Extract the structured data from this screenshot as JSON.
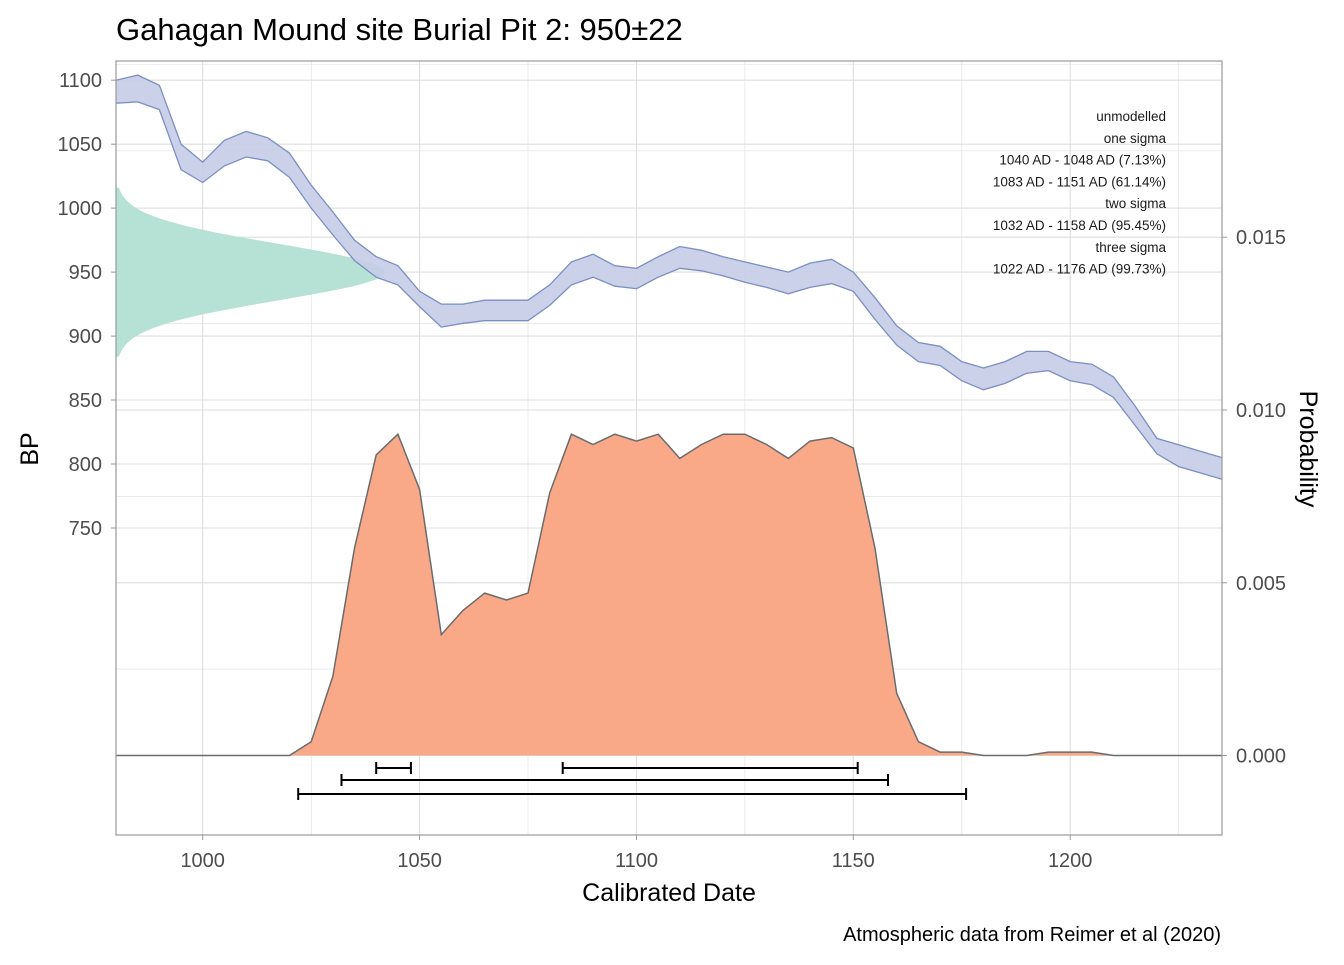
{
  "chart_data": {
    "type": "area",
    "title": "Gahagan Mound site Burial Pit 2: 950±22",
    "xlabel": "Calibrated Date",
    "ylabel": "BP",
    "y2label": "Probability",
    "caption": "Atmospheric data from Reimer et al (2020)",
    "xlim": [
      980,
      1235
    ],
    "ylim": [
      510,
      1115
    ],
    "y2lim": [
      -0.0023,
      0.0201
    ],
    "x_ticks": [
      1000,
      1050,
      1100,
      1150,
      1200
    ],
    "y_ticks": [
      750,
      800,
      850,
      900,
      950,
      1000,
      1050,
      1100
    ],
    "y2_ticks": [
      0.0,
      0.005,
      0.01,
      0.015
    ],
    "y2_tick_labels": [
      "0.000",
      "0.005",
      "0.010",
      "0.015"
    ],
    "grid": true,
    "calibration_curve": {
      "x": [
        980,
        985,
        990,
        995,
        1000,
        1005,
        1010,
        1015,
        1020,
        1025,
        1030,
        1035,
        1040,
        1045,
        1050,
        1055,
        1060,
        1065,
        1070,
        1075,
        1080,
        1085,
        1090,
        1095,
        1100,
        1105,
        1110,
        1115,
        1120,
        1125,
        1130,
        1135,
        1140,
        1145,
        1150,
        1155,
        1160,
        1165,
        1170,
        1175,
        1180,
        1185,
        1190,
        1195,
        1200,
        1205,
        1210,
        1215,
        1220,
        1225,
        1230,
        1235
      ],
      "upper": [
        1100,
        1104,
        1096,
        1050,
        1036,
        1053,
        1060,
        1055,
        1043,
        1018,
        997,
        975,
        962,
        955,
        935,
        925,
        925,
        928,
        928,
        928,
        940,
        958,
        964,
        955,
        953,
        962,
        970,
        967,
        962,
        958,
        954,
        950,
        957,
        960,
        950,
        930,
        908,
        895,
        892,
        880,
        875,
        880,
        888,
        888,
        880,
        878,
        868,
        845,
        820,
        815,
        810,
        805
      ],
      "lower": [
        1082,
        1083,
        1077,
        1030,
        1020,
        1033,
        1040,
        1037,
        1024,
        1000,
        979,
        959,
        946,
        940,
        923,
        907,
        910,
        912,
        912,
        912,
        924,
        940,
        946,
        939,
        937,
        946,
        953,
        951,
        947,
        942,
        938,
        933,
        938,
        941,
        935,
        913,
        893,
        880,
        877,
        865,
        858,
        863,
        871,
        873,
        865,
        862,
        852,
        830,
        808,
        798,
        793,
        788
      ]
    },
    "radiocarbon_age": {
      "mean_bp": 950,
      "error_bp": 22
    },
    "probability": {
      "x": [
        980,
        1020,
        1025,
        1030,
        1035,
        1040,
        1045,
        1050,
        1055,
        1060,
        1065,
        1070,
        1075,
        1080,
        1085,
        1090,
        1095,
        1100,
        1105,
        1110,
        1115,
        1120,
        1125,
        1130,
        1135,
        1140,
        1145,
        1150,
        1155,
        1160,
        1165,
        1170,
        1175,
        1180,
        1190,
        1195,
        1200,
        1205,
        1210,
        1220,
        1235
      ],
      "y": [
        0,
        0,
        0.0004,
        0.0023,
        0.006,
        0.0087,
        0.0093,
        0.0077,
        0.0035,
        0.0042,
        0.0047,
        0.0045,
        0.0047,
        0.0076,
        0.0093,
        0.009,
        0.0093,
        0.0091,
        0.0093,
        0.0086,
        0.009,
        0.0093,
        0.0093,
        0.009,
        0.0086,
        0.0091,
        0.0092,
        0.0089,
        0.006,
        0.0018,
        0.0004,
        0.0001,
        0.0001,
        0,
        0,
        0.0001,
        0.0001,
        0.0001,
        0,
        0,
        0
      ]
    },
    "sigma_ranges": [
      {
        "level": "one sigma",
        "ranges": [
          [
            1040,
            1048
          ],
          [
            1083,
            1151
          ]
        ]
      },
      {
        "level": "two sigma",
        "ranges": [
          [
            1032,
            1158
          ]
        ]
      },
      {
        "level": "three sigma",
        "ranges": [
          [
            1022,
            1176
          ]
        ]
      }
    ],
    "annotations": [
      "unmodelled",
      "one sigma",
      "1040 AD - 1048 AD (7.13%)",
      "1083 AD - 1151 AD (61.14%)",
      "two sigma",
      "1032 AD - 1158 AD (95.45%)",
      "three sigma",
      "1022 AD - 1176 AD (99.73%)"
    ],
    "colors": {
      "calibration_fill": "#c5cde6",
      "calibration_line": "#7b8fc4",
      "probability_fill": "#f9a988",
      "probability_line": "#6b6b6b",
      "radiocarbon_fill": "#b2e0d4",
      "grid": "#dedede",
      "text": "#4d4d4d"
    }
  }
}
